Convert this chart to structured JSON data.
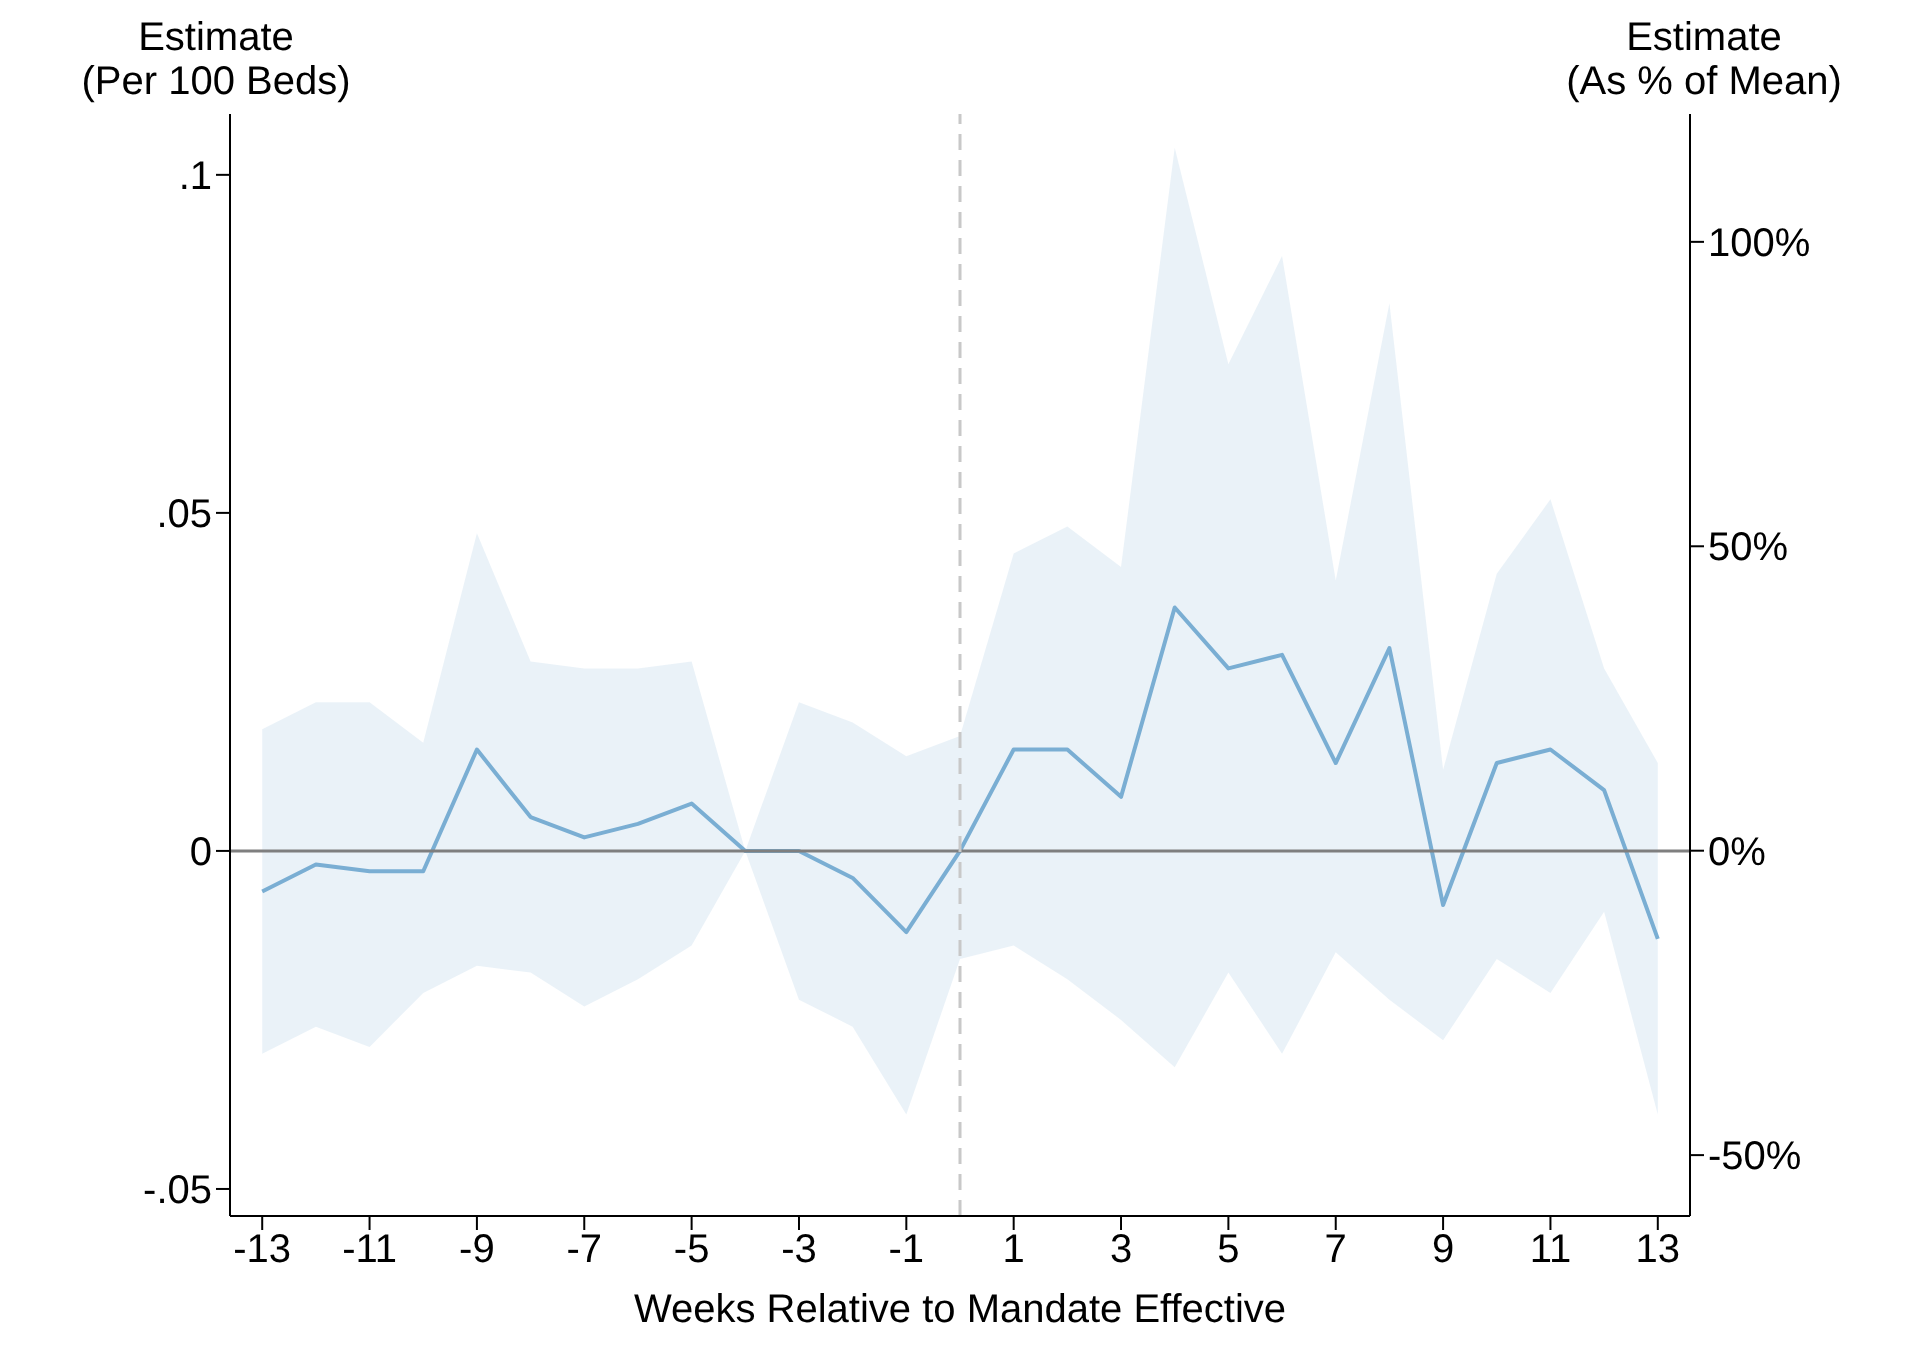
{
  "chart_data": {
    "type": "line",
    "xlabel": "Weeks Relative to Mandate Effective",
    "ylabel": "Estimate\n(Per 100 Beds)",
    "y2label": "Estimate\n(As % of Mean)",
    "x": [
      -13,
      -12,
      -11,
      -10,
      -9,
      -8,
      -7,
      -6,
      -5,
      -4,
      -3,
      -2,
      -1,
      0,
      1,
      2,
      3,
      4,
      5,
      6,
      7,
      8,
      9,
      10,
      11,
      12,
      13
    ],
    "series": [
      {
        "color": "#7aaed3",
        "values": [
          -0.006,
          -0.002,
          -0.003,
          -0.003,
          0.015,
          0.005,
          0.002,
          0.004,
          0.007,
          0,
          0,
          -0.004,
          -0.012,
          0,
          0.015,
          0.015,
          0.008,
          0.036,
          0.027,
          0.029,
          0.013,
          0.03,
          -0.008,
          0.013,
          0.015,
          0.009,
          -0.013
        ],
        "lower": [
          -0.03,
          -0.026,
          -0.029,
          -0.021,
          -0.017,
          -0.018,
          -0.023,
          -0.019,
          -0.014,
          0,
          -0.022,
          -0.026,
          -0.039,
          -0.016,
          -0.014,
          -0.019,
          -0.025,
          -0.032,
          -0.018,
          -0.03,
          -0.015,
          -0.022,
          -0.028,
          -0.016,
          -0.021,
          -0.009,
          -0.039
        ],
        "upper": [
          0.018,
          0.022,
          0.022,
          0.016,
          0.047,
          0.028,
          0.027,
          0.027,
          0.028,
          0,
          0.022,
          0.019,
          0.014,
          0.017,
          0.044,
          0.048,
          0.042,
          0.104,
          0.072,
          0.088,
          0.04,
          0.081,
          0.012,
          0.041,
          0.052,
          0.027,
          0.013
        ]
      }
    ],
    "xlim": [
      -13.6,
      13.6
    ],
    "xticks": [
      -13,
      -11,
      -9,
      -7,
      -5,
      -3,
      -1,
      1,
      3,
      5,
      7,
      9,
      11,
      13
    ],
    "ylim": [
      -0.054,
      0.109
    ],
    "yticks": [
      {
        "value": -0.05,
        "label": "-.05"
      },
      {
        "value": 0,
        "label": "0"
      },
      {
        "value": 0.05,
        "label": ".05"
      },
      {
        "value": 0.1,
        "label": ".1"
      }
    ],
    "y2lim": [
      -60,
      121
    ],
    "y2ticks": [
      {
        "value": -50,
        "label": "-50%"
      },
      {
        "value": 0,
        "label": "0%"
      },
      {
        "value": 50,
        "label": "50%"
      },
      {
        "value": 100,
        "label": "100%"
      }
    ],
    "ref_lines": [
      {
        "axis": "y",
        "value": 0,
        "color": "#7f7f7f",
        "line_style": "solid"
      },
      {
        "axis": "x",
        "value": 0,
        "color": "#c8c8c8",
        "line_style": "dashed"
      }
    ],
    "grid": false,
    "legend": false,
    "marker": "none",
    "line_style": "solid"
  }
}
